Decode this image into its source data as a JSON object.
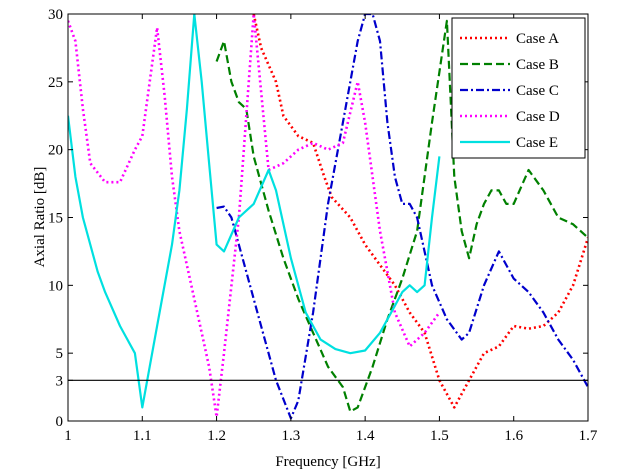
{
  "chart_data": {
    "type": "line",
    "title": "",
    "xlabel": "Frequency [GHz]",
    "ylabel": "Axial Ratio [dB]",
    "xlim": [
      1,
      1.7
    ],
    "ylim": [
      0,
      30
    ],
    "xticks": [
      1,
      1.1,
      1.2,
      1.3,
      1.4,
      1.5,
      1.6,
      1.7
    ],
    "xtick_labels": [
      "1",
      "1.1",
      "1.2",
      "1.3",
      "1.4",
      "1.5",
      "1.6",
      "1.7"
    ],
    "yticks": [
      0,
      3,
      5,
      10,
      15,
      20,
      25,
      30
    ],
    "ytick_labels": [
      "0",
      "3",
      "5",
      "10",
      "15",
      "20",
      "25",
      "30"
    ],
    "grid": false,
    "legend_position": "top-right",
    "reference_line": {
      "y": 3,
      "color": "#000000"
    },
    "series": [
      {
        "name": "Case A",
        "color": "#ff0000",
        "dash": "dotted",
        "points": [
          [
            1.25,
            30
          ],
          [
            1.26,
            27.5
          ],
          [
            1.28,
            25
          ],
          [
            1.29,
            22.5
          ],
          [
            1.31,
            21
          ],
          [
            1.33,
            20.5
          ],
          [
            1.345,
            18
          ],
          [
            1.355,
            16.5
          ],
          [
            1.38,
            15
          ],
          [
            1.4,
            13
          ],
          [
            1.42,
            11.5
          ],
          [
            1.44,
            10
          ],
          [
            1.46,
            8
          ],
          [
            1.48,
            6.5
          ],
          [
            1.5,
            3
          ],
          [
            1.52,
            1
          ],
          [
            1.54,
            3
          ],
          [
            1.56,
            5
          ],
          [
            1.58,
            5.5
          ],
          [
            1.6,
            7
          ],
          [
            1.62,
            6.8
          ],
          [
            1.64,
            7
          ],
          [
            1.66,
            8
          ],
          [
            1.68,
            10
          ],
          [
            1.7,
            13.5
          ]
        ]
      },
      {
        "name": "Case B",
        "color": "#008000",
        "dash": "dashed",
        "points": [
          [
            1.2,
            26.5
          ],
          [
            1.21,
            28
          ],
          [
            1.22,
            25
          ],
          [
            1.23,
            23.5
          ],
          [
            1.24,
            23
          ],
          [
            1.25,
            19.5
          ],
          [
            1.27,
            15.5
          ],
          [
            1.29,
            12
          ],
          [
            1.31,
            9
          ],
          [
            1.33,
            6.5
          ],
          [
            1.35,
            4
          ],
          [
            1.37,
            2.5
          ],
          [
            1.38,
            0.7
          ],
          [
            1.39,
            1
          ],
          [
            1.41,
            4
          ],
          [
            1.43,
            7.5
          ],
          [
            1.45,
            10.5
          ],
          [
            1.47,
            14
          ],
          [
            1.49,
            22
          ],
          [
            1.51,
            29.5
          ],
          [
            1.52,
            18
          ],
          [
            1.53,
            14
          ],
          [
            1.54,
            12
          ],
          [
            1.55,
            14.5
          ],
          [
            1.56,
            16
          ],
          [
            1.57,
            17
          ],
          [
            1.58,
            17
          ],
          [
            1.59,
            16
          ],
          [
            1.6,
            16
          ],
          [
            1.62,
            18.5
          ],
          [
            1.64,
            17
          ],
          [
            1.66,
            15
          ],
          [
            1.68,
            14.5
          ],
          [
            1.7,
            13.5
          ]
        ]
      },
      {
        "name": "Case C",
        "color": "#0000cc",
        "dash": "dashdot",
        "points": [
          [
            1.2,
            15.7
          ],
          [
            1.21,
            15.8
          ],
          [
            1.22,
            15
          ],
          [
            1.24,
            11
          ],
          [
            1.26,
            7
          ],
          [
            1.28,
            3
          ],
          [
            1.3,
            0.2
          ],
          [
            1.31,
            1.5
          ],
          [
            1.33,
            8
          ],
          [
            1.35,
            16
          ],
          [
            1.37,
            22
          ],
          [
            1.39,
            28
          ],
          [
            1.4,
            30
          ],
          [
            1.41,
            30
          ],
          [
            1.42,
            28
          ],
          [
            1.43,
            22
          ],
          [
            1.44,
            18
          ],
          [
            1.45,
            16
          ],
          [
            1.46,
            16
          ],
          [
            1.47,
            15
          ],
          [
            1.49,
            10
          ],
          [
            1.51,
            7.5
          ],
          [
            1.53,
            6
          ],
          [
            1.54,
            6.5
          ],
          [
            1.56,
            10
          ],
          [
            1.58,
            12.5
          ],
          [
            1.6,
            10.5
          ],
          [
            1.62,
            9.5
          ],
          [
            1.64,
            8
          ],
          [
            1.66,
            6
          ],
          [
            1.68,
            4.5
          ],
          [
            1.7,
            2.5
          ]
        ]
      },
      {
        "name": "Case D",
        "color": "#ff00ff",
        "dash": "dotted",
        "points": [
          [
            1,
            29.5
          ],
          [
            1.01,
            28
          ],
          [
            1.02,
            23
          ],
          [
            1.03,
            19
          ],
          [
            1.05,
            17.6
          ],
          [
            1.07,
            17.6
          ],
          [
            1.09,
            20
          ],
          [
            1.1,
            21
          ],
          [
            1.11,
            25
          ],
          [
            1.12,
            29
          ],
          [
            1.13,
            24
          ],
          [
            1.14,
            18
          ],
          [
            1.15,
            14
          ],
          [
            1.17,
            9
          ],
          [
            1.19,
            4
          ],
          [
            1.2,
            0.3
          ],
          [
            1.21,
            5
          ],
          [
            1.23,
            15
          ],
          [
            1.25,
            30
          ],
          [
            1.27,
            18.5
          ],
          [
            1.29,
            19
          ],
          [
            1.31,
            20
          ],
          [
            1.33,
            20.5
          ],
          [
            1.35,
            20
          ],
          [
            1.37,
            20.5
          ],
          [
            1.39,
            25
          ],
          [
            1.4,
            22
          ],
          [
            1.42,
            14
          ],
          [
            1.44,
            8
          ],
          [
            1.46,
            5.5
          ],
          [
            1.48,
            6.5
          ],
          [
            1.5,
            8
          ]
        ]
      },
      {
        "name": "Case E",
        "color": "#00e0e0",
        "dash": "solid",
        "points": [
          [
            1,
            22.5
          ],
          [
            1.01,
            18
          ],
          [
            1.02,
            15
          ],
          [
            1.04,
            11
          ],
          [
            1.05,
            9.5
          ],
          [
            1.07,
            7
          ],
          [
            1.09,
            5
          ],
          [
            1.1,
            1
          ],
          [
            1.11,
            4
          ],
          [
            1.12,
            7
          ],
          [
            1.14,
            13
          ],
          [
            1.15,
            17
          ],
          [
            1.16,
            23
          ],
          [
            1.17,
            30
          ],
          [
            1.18,
            25
          ],
          [
            1.19,
            19
          ],
          [
            1.2,
            13
          ],
          [
            1.21,
            12.5
          ],
          [
            1.23,
            15
          ],
          [
            1.24,
            15.5
          ],
          [
            1.25,
            16
          ],
          [
            1.27,
            18.5
          ],
          [
            1.28,
            17
          ],
          [
            1.3,
            12
          ],
          [
            1.32,
            8
          ],
          [
            1.34,
            6
          ],
          [
            1.36,
            5.3
          ],
          [
            1.38,
            5
          ],
          [
            1.4,
            5.2
          ],
          [
            1.42,
            6.5
          ],
          [
            1.44,
            8.5
          ],
          [
            1.45,
            9.5
          ],
          [
            1.46,
            10
          ],
          [
            1.47,
            9.5
          ],
          [
            1.48,
            10
          ],
          [
            1.49,
            15
          ],
          [
            1.5,
            19.5
          ]
        ]
      }
    ]
  }
}
